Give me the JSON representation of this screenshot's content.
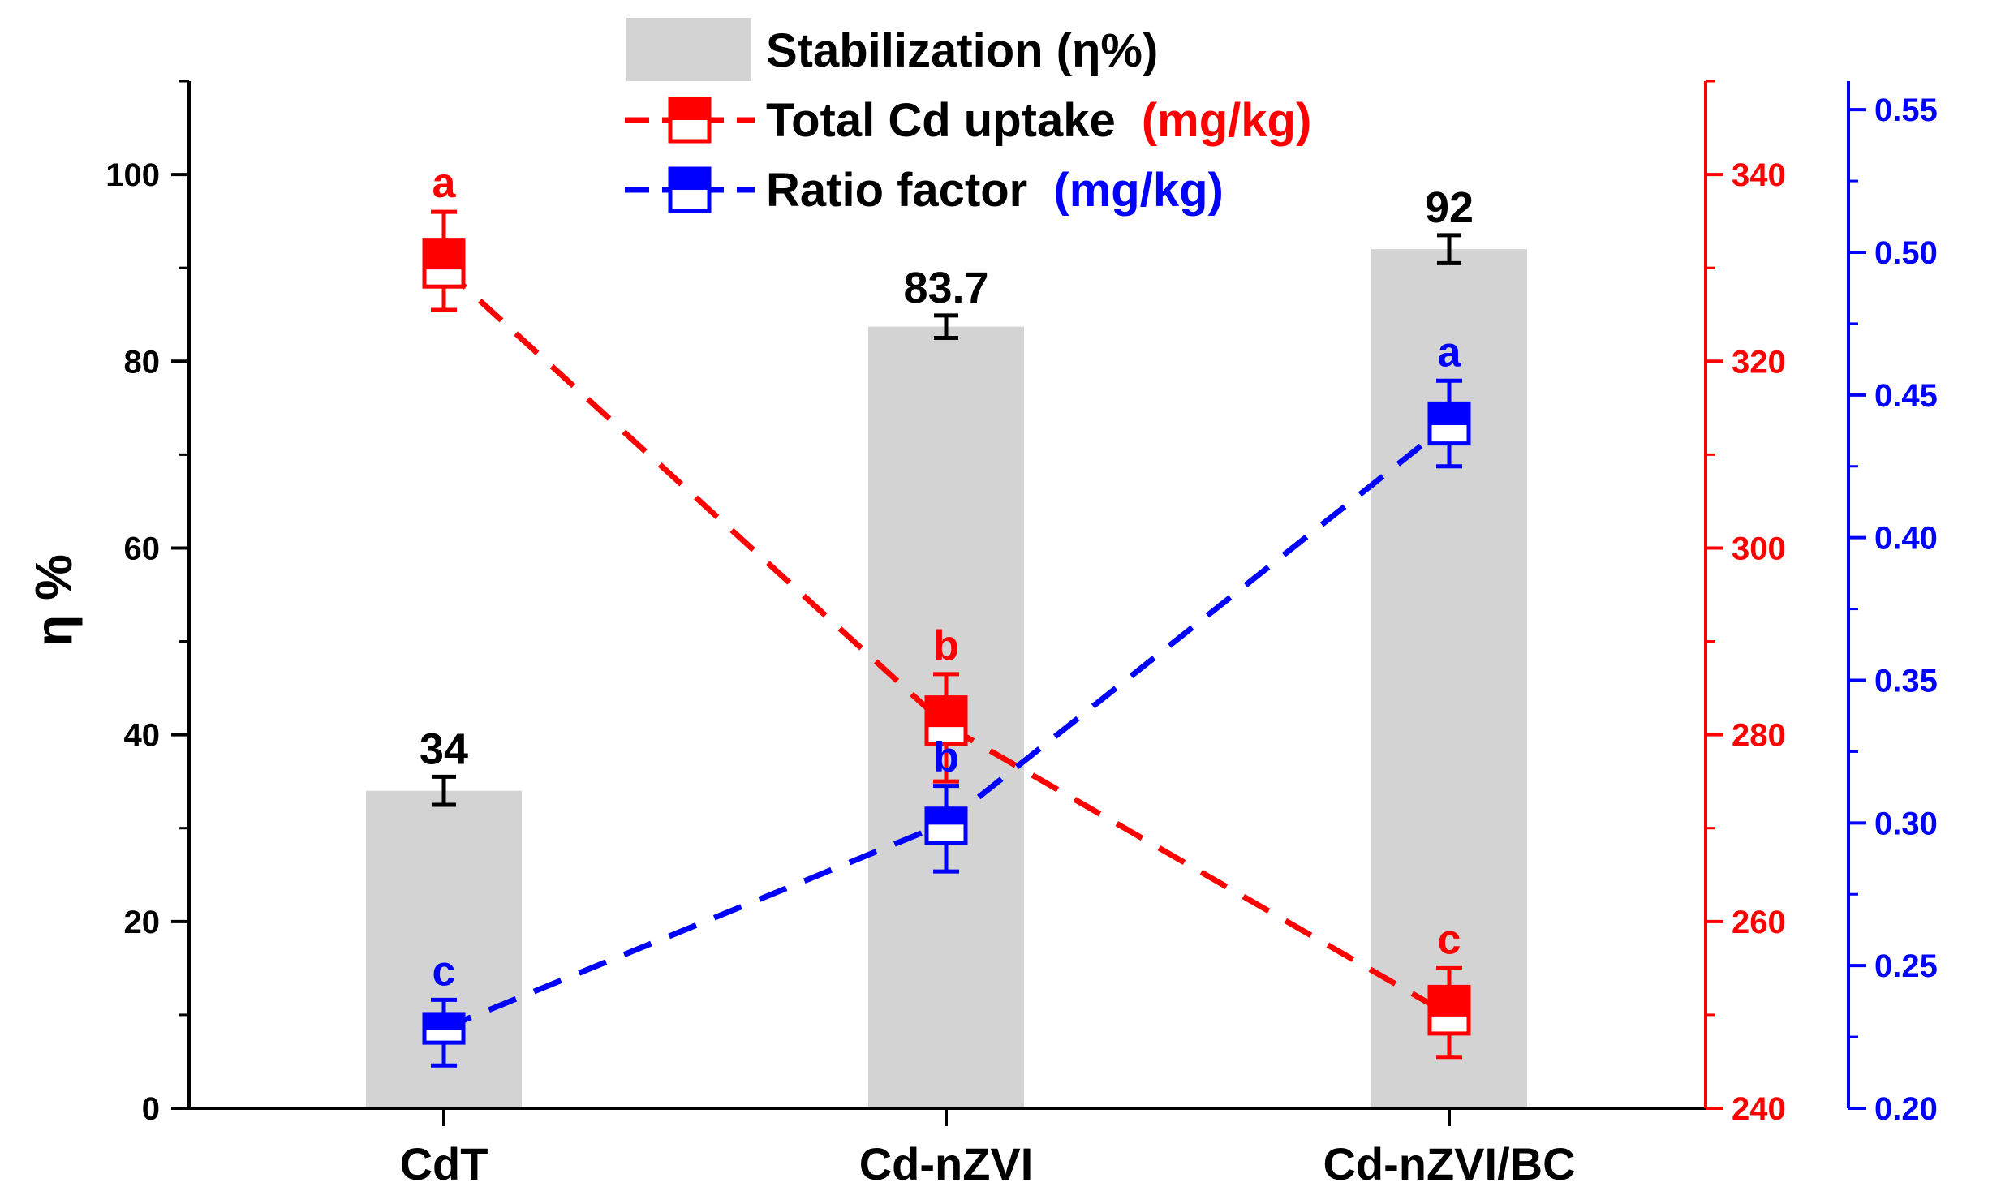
{
  "chart_data": {
    "type": "bar",
    "categories": [
      "CdT",
      "Cd-nZVI",
      "Cd-nZVI/BC"
    ],
    "colors": {
      "bar": "#d3d3d3",
      "black": "#000000",
      "uptake": "#ff0000",
      "ratio": "#0000ff"
    },
    "axes": {
      "left": {
        "title": "η %",
        "ylim": [
          0,
          110
        ],
        "ticks": [
          0,
          20,
          40,
          60,
          80,
          100
        ],
        "tick_labels": [
          "0",
          "20",
          "40",
          "60",
          "80",
          "100"
        ]
      },
      "right1": {
        "ylim": [
          240,
          350
        ],
        "ticks": [
          240,
          260,
          280,
          300,
          320,
          340
        ],
        "tick_labels": [
          "240",
          "260",
          "280",
          "300",
          "320",
          "340"
        ]
      },
      "right2": {
        "ylim": [
          0.2,
          0.56
        ],
        "ticks": [
          0.2,
          0.25,
          0.3,
          0.35,
          0.4,
          0.45,
          0.5,
          0.55
        ],
        "tick_labels": [
          "0.20",
          "0.25",
          "0.30",
          "0.35",
          "0.40",
          "0.45",
          "0.50",
          "0.55"
        ]
      }
    },
    "legend": {
      "position": "top-center",
      "stabilization": "Stabilization (η%)",
      "uptake_main": "Total Cd uptake",
      "uptake_unit": "(mg/kg)",
      "ratio_main": "Ratio factor",
      "ratio_unit": "(mg/kg)"
    },
    "series": [
      {
        "name": "Stabilization (η%)",
        "kind": "bar",
        "axis": "left",
        "values": [
          34,
          83.7,
          92
        ],
        "errors": [
          1.5,
          1.2,
          1.5
        ],
        "labels": [
          "34",
          "83.7",
          "92"
        ]
      },
      {
        "name": "Total Cd uptake (mg/kg)",
        "kind": "box-line",
        "axis": "right1",
        "values": [
          330,
          281,
          250
        ],
        "box": [
          [
            328,
            333
          ],
          [
            279,
            284
          ],
          [
            248,
            253
          ]
        ],
        "whisker": [
          [
            325.5,
            336
          ],
          [
            275,
            286.5
          ],
          [
            245.5,
            255
          ]
        ],
        "letters": [
          "a",
          "b",
          "c"
        ]
      },
      {
        "name": "Ratio factor (mg/kg)",
        "kind": "box-line",
        "axis": "right2",
        "values": [
          0.228,
          0.3,
          0.44
        ],
        "box": [
          [
            0.223,
            0.233
          ],
          [
            0.293,
            0.305
          ],
          [
            0.433,
            0.447
          ]
        ],
        "whisker": [
          [
            0.215,
            0.238
          ],
          [
            0.283,
            0.313
          ],
          [
            0.425,
            0.455
          ]
        ],
        "letters": [
          "c",
          "b",
          "a"
        ]
      }
    ]
  }
}
